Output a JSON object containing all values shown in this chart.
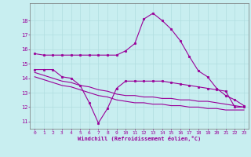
{
  "xlabel": "Windchill (Refroidissement éolien,°C)",
  "background_color": "#c8eef0",
  "grid_color": "#b0dde0",
  "line_color": "#990099",
  "xlim": [
    -0.5,
    23.5
  ],
  "ylim": [
    10.5,
    19.2
  ],
  "xticks": [
    0,
    1,
    2,
    3,
    4,
    5,
    6,
    7,
    8,
    9,
    10,
    11,
    12,
    13,
    14,
    15,
    16,
    17,
    18,
    19,
    20,
    21,
    22,
    23
  ],
  "yticks": [
    11,
    12,
    13,
    14,
    15,
    16,
    17,
    18
  ],
  "line1_x": [
    0,
    1,
    2,
    3,
    4,
    5,
    6,
    7,
    8,
    9,
    10,
    11,
    12,
    13,
    14,
    15,
    16,
    17,
    18,
    19,
    20,
    21,
    22,
    23
  ],
  "line1_y": [
    15.7,
    15.6,
    15.6,
    15.6,
    15.6,
    15.6,
    15.6,
    15.6,
    15.6,
    15.6,
    15.9,
    16.4,
    18.1,
    18.5,
    18.0,
    17.4,
    16.6,
    15.5,
    14.5,
    14.1,
    13.3,
    12.8,
    12.5,
    12.1
  ],
  "line2_x": [
    0,
    1,
    2,
    3,
    4,
    5,
    6,
    7,
    8,
    9,
    10,
    11,
    12,
    13,
    14,
    15,
    16,
    17,
    18,
    19,
    20,
    21,
    22,
    23
  ],
  "line2_y": [
    14.6,
    14.6,
    14.6,
    14.1,
    14.0,
    13.5,
    12.3,
    10.9,
    11.9,
    13.3,
    13.8,
    13.8,
    13.8,
    13.8,
    13.8,
    13.7,
    13.6,
    13.5,
    13.4,
    13.3,
    13.2,
    13.1,
    12.0,
    12.0
  ],
  "line3_x": [
    0,
    1,
    2,
    3,
    4,
    5,
    6,
    7,
    8,
    9,
    10,
    11,
    12,
    13,
    14,
    15,
    16,
    17,
    18,
    19,
    20,
    21,
    22,
    23
  ],
  "line3_y": [
    14.4,
    14.2,
    14.0,
    13.8,
    13.7,
    13.5,
    13.4,
    13.2,
    13.1,
    12.9,
    12.8,
    12.8,
    12.7,
    12.7,
    12.6,
    12.6,
    12.5,
    12.5,
    12.4,
    12.4,
    12.3,
    12.2,
    12.1,
    12.0
  ],
  "line4_x": [
    0,
    1,
    2,
    3,
    4,
    5,
    6,
    7,
    8,
    9,
    10,
    11,
    12,
    13,
    14,
    15,
    16,
    17,
    18,
    19,
    20,
    21,
    22,
    23
  ],
  "line4_y": [
    14.1,
    13.9,
    13.7,
    13.5,
    13.4,
    13.2,
    13.0,
    12.8,
    12.7,
    12.5,
    12.4,
    12.3,
    12.3,
    12.2,
    12.2,
    12.1,
    12.1,
    12.0,
    12.0,
    11.9,
    11.9,
    11.8,
    11.8,
    11.8
  ]
}
